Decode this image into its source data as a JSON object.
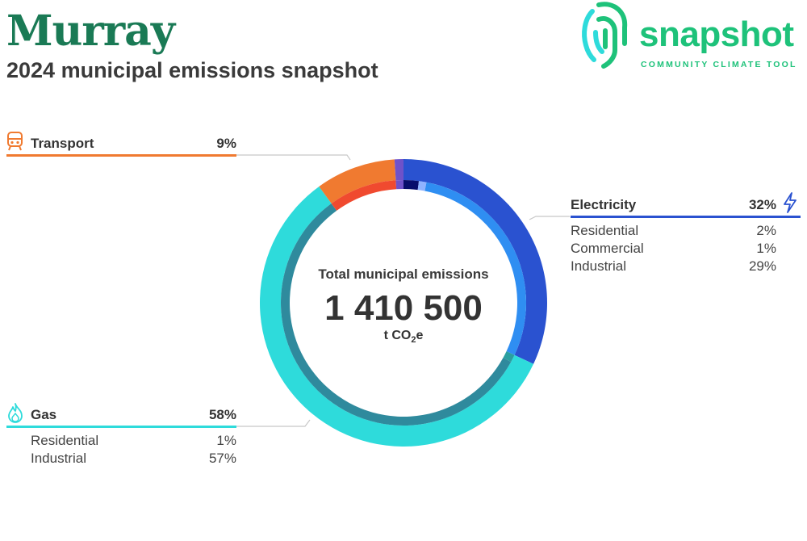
{
  "header": {
    "title": "Murray",
    "subtitle": "2024 municipal emissions snapshot"
  },
  "logo": {
    "word": "snapshot",
    "tagline": "COMMUNITY CLIMATE TOOL",
    "color": "#1ec27a",
    "icon": "fingerprint-icon"
  },
  "center": {
    "label": "Total municipal emissions",
    "value": "1 410 500",
    "unit_prefix": "t CO",
    "unit_sub": "2",
    "unit_suffix": "e"
  },
  "chart_data": {
    "type": "pie",
    "title": "2024 municipal emissions snapshot",
    "total": 1410500,
    "unit": "t CO2e",
    "sectors": [
      {
        "name": "Electricity",
        "percent": 32,
        "percent_label": "32%",
        "color": "#2a52d0",
        "icon": "lightning-icon",
        "subcategories": [
          {
            "name": "Residential",
            "percent": 2,
            "percent_label": "2%",
            "color": "#070d6b"
          },
          {
            "name": "Commercial",
            "percent": 1,
            "percent_label": "1%",
            "color": "#8fb3ff"
          },
          {
            "name": "Industrial",
            "percent": 29,
            "percent_label": "29%",
            "color": "#2f8ef2"
          }
        ]
      },
      {
        "name": "Gas",
        "percent": 58,
        "percent_label": "58%",
        "color": "#2edbdb",
        "icon": "flame-icon",
        "subcategories": [
          {
            "name": "Residential",
            "percent": 1,
            "percent_label": "1%",
            "color": "#2a9fa0"
          },
          {
            "name": "Industrial",
            "percent": 57,
            "percent_label": "57%",
            "color": "#2f8a9d"
          }
        ]
      },
      {
        "name": "Transport",
        "percent": 9,
        "percent_label": "9%",
        "color": "#f07a30",
        "icon": "train-icon",
        "subcategories": [
          {
            "name": "",
            "percent": 9,
            "percent_label": "",
            "color": "#f04a2f"
          }
        ]
      },
      {
        "name": "",
        "percent": 1,
        "percent_label": "",
        "color": "#6f52c9",
        "icon": "",
        "subcategories": [
          {
            "name": "",
            "percent": 1,
            "percent_label": "",
            "color": "#6f52c9"
          }
        ]
      }
    ]
  }
}
